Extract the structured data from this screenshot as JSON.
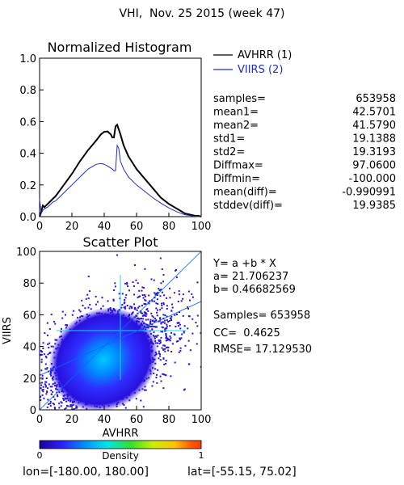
{
  "page_title": "VHI,  Nov. 25 2015 (week 47)",
  "chart_data": [
    {
      "type": "line",
      "title": "Normalized Histogram",
      "xlim": [
        0,
        100
      ],
      "ylim": [
        0,
        1.0
      ],
      "x_ticks": [
        0,
        20,
        40,
        60,
        80,
        100
      ],
      "y_ticks": [
        "0.0",
        "0.2",
        "0.4",
        "0.6",
        "0.8",
        "1.0"
      ],
      "legend_position": "right",
      "series": [
        {
          "name": "AVHRR (1)",
          "color": "#000000",
          "x": [
            0,
            1,
            2,
            3,
            5,
            8,
            10,
            15,
            20,
            25,
            30,
            35,
            38,
            40,
            42,
            44,
            45,
            46,
            47,
            48,
            49,
            50,
            52,
            55,
            60,
            65,
            70,
            75,
            80,
            85,
            90,
            95,
            97,
            98,
            100
          ],
          "y": [
            0.0,
            0.03,
            0.07,
            0.06,
            0.08,
            0.11,
            0.13,
            0.2,
            0.27,
            0.35,
            0.42,
            0.48,
            0.52,
            0.535,
            0.538,
            0.52,
            0.5,
            0.5,
            0.57,
            0.58,
            0.55,
            0.52,
            0.45,
            0.38,
            0.3,
            0.24,
            0.18,
            0.12,
            0.08,
            0.05,
            0.02,
            0.008,
            0.004,
            0.006,
            0.0
          ]
        },
        {
          "name": "VIIRS (2)",
          "color": "#1f2ec8",
          "x": [
            0,
            1,
            2,
            3,
            5,
            8,
            10,
            15,
            20,
            25,
            30,
            35,
            38,
            40,
            42,
            45,
            46,
            47,
            48,
            49,
            50,
            52,
            55,
            60,
            65,
            70,
            75,
            80,
            85,
            90,
            95,
            97,
            100
          ],
          "y": [
            0.11,
            0.02,
            0.04,
            0.05,
            0.06,
            0.09,
            0.1,
            0.15,
            0.2,
            0.25,
            0.3,
            0.33,
            0.335,
            0.33,
            0.32,
            0.3,
            0.29,
            0.29,
            0.45,
            0.43,
            0.35,
            0.3,
            0.25,
            0.2,
            0.16,
            0.12,
            0.085,
            0.055,
            0.03,
            0.012,
            0.004,
            0.002,
            0.0
          ]
        }
      ]
    },
    {
      "type": "scatter",
      "title": "Scatter Plot",
      "xlabel": "AVHRR",
      "ylabel": "VIIRS",
      "xlim": [
        0,
        100
      ],
      "ylim": [
        0,
        100
      ],
      "x_ticks": [
        0,
        20,
        40,
        60,
        80,
        100
      ],
      "y_ticks": [
        0,
        20,
        40,
        60,
        80,
        100
      ],
      "regression": {
        "a": 21.706237,
        "b": 0.46682569
      },
      "density_center": [
        40,
        33
      ],
      "colorbar": {
        "label": "Density",
        "min_label": "0",
        "max_label": "1",
        "colors": [
          "#1a00a0",
          "#2d20ff",
          "#0090ff",
          "#00e8e8",
          "#30e030",
          "#c8f000",
          "#ffc000",
          "#ff6000",
          "#ff3a00"
        ]
      }
    }
  ],
  "stats": [
    {
      "label": "samples=",
      "value": "653958"
    },
    {
      "label": "mean1=",
      "value": "42.5701"
    },
    {
      "label": "mean2=",
      "value": "41.5790"
    },
    {
      "label": "std1=",
      "value": "19.1388"
    },
    {
      "label": "std2=",
      "value": "19.3193"
    },
    {
      "label": "Diffmax=",
      "value": "97.0600"
    },
    {
      "label": "Diffmin=",
      "value": "-100.000"
    },
    {
      "label": "mean(diff)=",
      "value": "-0.990991"
    },
    {
      "label": "stddev(diff)=",
      "value": "19.9385"
    }
  ],
  "regression_text": {
    "formula": "Y= a +b * X",
    "a": "a= 21.706237",
    "b": "b= 0.46682569"
  },
  "fit_stats": {
    "samples": "Samples= 653958",
    "cc": "CC=  0.4625",
    "rmse": "RMSE= 17.129530"
  },
  "footer": {
    "lon": "lon=[-180.00, 180.00]",
    "lat": "lat=[-55.15, 75.02]"
  }
}
